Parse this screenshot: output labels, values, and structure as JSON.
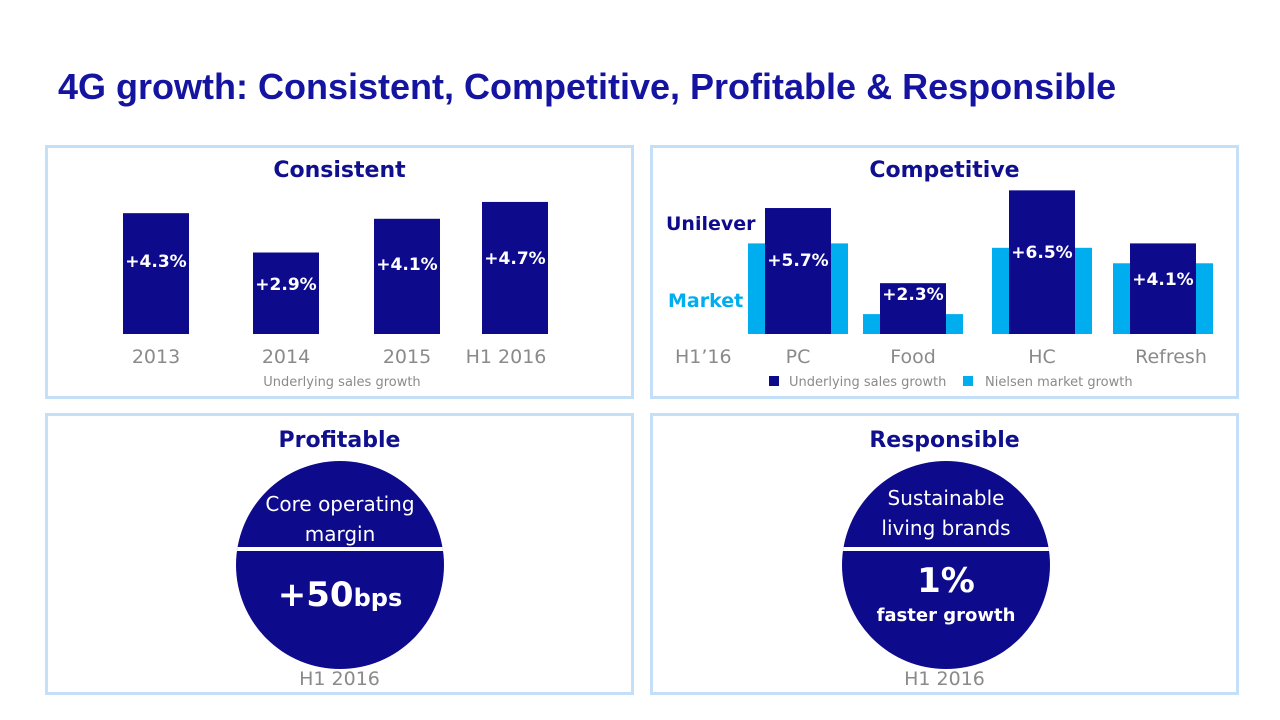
{
  "title": "4G growth: Consistent, Competitive, Profitable & Responsible",
  "colors": {
    "unilever": "#0e0a8c",
    "market": "#00aeef",
    "border": "#c4dff8",
    "title": "#1414a0"
  },
  "chart_data": [
    {
      "type": "bar",
      "title": "Consistent",
      "categories": [
        "2013",
        "2014",
        "2015",
        "H1 2016"
      ],
      "values": [
        4.3,
        2.9,
        4.1,
        4.7
      ],
      "labels": [
        "+4.3%",
        "+2.9%",
        "+4.1%",
        "+4.7%"
      ],
      "xlabel": "Underlying sales growth",
      "ylim": [
        0,
        5.3
      ]
    },
    {
      "type": "bar",
      "title": "Competitive",
      "period_label": "H1’16",
      "row_labels": {
        "unilever": "Unilever",
        "market": "Market"
      },
      "categories": [
        "PC",
        "Food",
        "HC",
        "Refresh"
      ],
      "series": [
        {
          "name": "Underlying sales growth",
          "values": [
            5.7,
            2.3,
            6.5,
            4.1
          ],
          "labels": [
            "+5.7%",
            "+2.3%",
            "+6.5%",
            "+4.1%"
          ]
        },
        {
          "name": "Nielsen market growth",
          "values": [
            4.1,
            0.9,
            3.9,
            3.2
          ]
        }
      ],
      "ylim": [
        0,
        6.5
      ],
      "legend": "bottom"
    }
  ],
  "profitable": {
    "title": "Profitable",
    "top": "Core operating margin",
    "value": "+50",
    "unit": "bps",
    "period": "H1 2016"
  },
  "responsible": {
    "title": "Responsible",
    "top": "Sustainable living brands",
    "value": "1%",
    "sub": "faster growth",
    "period": "H1 2016"
  }
}
